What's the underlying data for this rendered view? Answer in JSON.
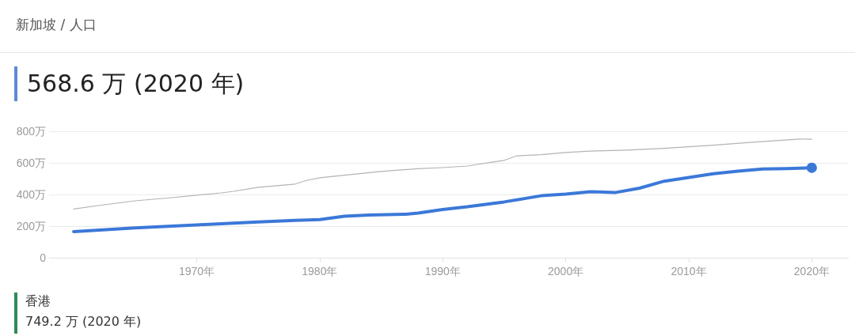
{
  "chart_data": {
    "type": "line",
    "title": "新加坡 / 人口",
    "subtitle": "568.6 万 (2020 年)",
    "annotations": [
      "香港",
      "749.2 万 (2020 年)"
    ],
    "series": [
      {
        "color": "#b4b4b4",
        "x": [
          1960,
          1962,
          1965,
          1968,
          1970,
          1972,
          1973,
          1975,
          1978,
          1979,
          1980,
          1982,
          1985,
          1988,
          1990,
          1992,
          1994,
          1995,
          1996,
          1998,
          2000,
          2002,
          2005,
          2008,
          2010,
          2012,
          2015,
          2019,
          2020
        ],
        "values": [
          308,
          330,
          360,
          380,
          396,
          410,
          420,
          446,
          466,
          490,
          506,
          522,
          546,
          563,
          570,
          580,
          604,
          616,
          644,
          652,
          666,
          674,
          681,
          692,
          702,
          712,
          729,
          751,
          749
        ]
      },
      {
        "color": "#3b78d8",
        "x": [
          1960,
          1965,
          1970,
          1975,
          1978,
          1980,
          1982,
          1984,
          1987,
          1988,
          1990,
          1992,
          1995,
          1998,
          2000,
          2002,
          2004,
          2006,
          2008,
          2010,
          2012,
          2014,
          2016,
          2018,
          2020
        ],
        "values": [
          165,
          189,
          208,
          226,
          236,
          241,
          262,
          270,
          275,
          282,
          305,
          322,
          353,
          392,
          403,
          418,
          412,
          440,
          484,
          508,
          531,
          547,
          561,
          564,
          569
        ]
      }
    ],
    "xlim": [
      1958,
      2023
    ],
    "xticks": [
      {
        "value": 1970,
        "label": "1970年"
      },
      {
        "value": 1980,
        "label": "1980年"
      },
      {
        "value": 1990,
        "label": "1990年"
      },
      {
        "value": 2000,
        "label": "2000年"
      },
      {
        "value": 2010,
        "label": "2010年"
      },
      {
        "value": 2020,
        "label": "2020年"
      }
    ],
    "ylim": [
      0,
      800
    ],
    "yticks": [
      0,
      {
        "value": 200,
        "label": "200万"
      },
      {
        "value": 400,
        "label": "400万"
      },
      {
        "value": 600,
        "label": "600万"
      },
      {
        "value": 800,
        "label": "800万"
      }
    ],
    "grid": "y"
  }
}
